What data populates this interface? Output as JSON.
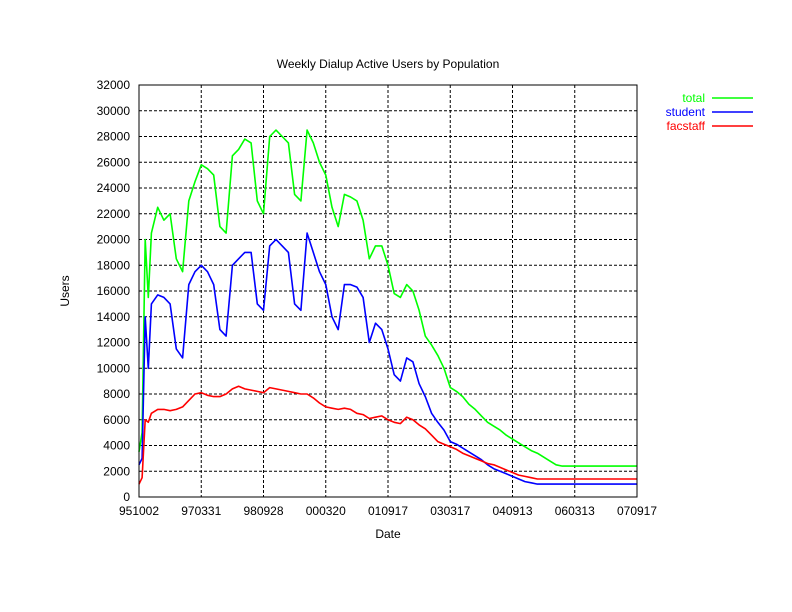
{
  "chart_data": {
    "type": "line",
    "title": "Weekly Dialup Active Users by Population",
    "xlabel": "Date",
    "ylabel": "Users",
    "ylim": [
      0,
      32000
    ],
    "yticks": [
      0,
      2000,
      4000,
      6000,
      8000,
      10000,
      12000,
      14000,
      16000,
      18000,
      20000,
      22000,
      24000,
      26000,
      28000,
      30000,
      32000
    ],
    "xticks": [
      "951002",
      "970331",
      "980928",
      "000320",
      "010917",
      "030317",
      "040913",
      "060313",
      "070917"
    ],
    "grid": true,
    "legend_position": "top-right outside",
    "x": [
      0,
      0.05,
      0.1,
      0.15,
      0.2,
      0.3,
      0.4,
      0.5,
      0.6,
      0.7,
      0.8,
      0.9,
      1.0,
      1.1,
      1.2,
      1.3,
      1.4,
      1.5,
      1.6,
      1.7,
      1.8,
      1.9,
      2.0,
      2.1,
      2.2,
      2.3,
      2.4,
      2.5,
      2.6,
      2.7,
      2.8,
      2.9,
      3.0,
      3.1,
      3.2,
      3.3,
      3.4,
      3.5,
      3.6,
      3.7,
      3.8,
      3.9,
      4.0,
      4.1,
      4.2,
      4.3,
      4.4,
      4.5,
      4.6,
      4.7,
      4.8,
      4.9,
      5.0,
      5.1,
      5.2,
      5.3,
      5.4,
      5.5,
      5.6,
      5.7,
      5.8,
      5.9,
      6.0,
      6.1,
      6.2,
      6.3,
      6.4,
      6.5,
      6.6,
      6.7,
      6.8,
      6.9,
      7.0,
      7.1,
      7.2,
      7.3,
      7.4,
      7.5,
      7.6,
      7.7,
      7.8,
      7.9,
      8.0
    ],
    "series": [
      {
        "name": "total",
        "color": "#00ff00",
        "values": [
          3500,
          5000,
          20000,
          15500,
          20500,
          22500,
          21500,
          22000,
          18500,
          17500,
          23000,
          24500,
          25800,
          25500,
          25000,
          21000,
          20500,
          26500,
          27000,
          27800,
          27500,
          23000,
          22000,
          28000,
          28500,
          28000,
          27500,
          23500,
          23000,
          28500,
          27500,
          26000,
          25000,
          22500,
          21000,
          23500,
          23300,
          23000,
          21500,
          18500,
          19500,
          19500,
          18000,
          15800,
          15500,
          16500,
          16000,
          14500,
          12500,
          11800,
          11000,
          10000,
          8500,
          8200,
          7800,
          7200,
          6800,
          6300,
          5800,
          5500,
          5200,
          4800,
          4500,
          4200,
          3900,
          3600,
          3400,
          3100,
          2800,
          2500,
          2400,
          2400,
          2400,
          2400,
          2400,
          2400,
          2400,
          2400,
          2400,
          2400,
          2400,
          2400,
          2400
        ]
      },
      {
        "name": "student",
        "color": "#0000ff",
        "values": [
          2500,
          3000,
          14000,
          10000,
          15000,
          15700,
          15500,
          15000,
          11500,
          10800,
          16500,
          17500,
          18000,
          17500,
          16500,
          13000,
          12500,
          18000,
          18500,
          19000,
          19000,
          15000,
          14500,
          19500,
          20000,
          19500,
          19000,
          15000,
          14500,
          20500,
          19000,
          17500,
          16500,
          14000,
          13000,
          16500,
          16500,
          16300,
          15500,
          12000,
          13500,
          13000,
          11500,
          9500,
          9000,
          10800,
          10500,
          8800,
          7800,
          6500,
          5800,
          5200,
          4300,
          4100,
          3800,
          3500,
          3200,
          2900,
          2500,
          2200,
          2000,
          1800,
          1600,
          1400,
          1200,
          1100,
          1000,
          1000,
          1000,
          1000,
          1000,
          1000,
          1000,
          1000,
          1000,
          1000,
          1000,
          1000,
          1000,
          1000,
          1000,
          1000,
          1000
        ]
      },
      {
        "name": "facstaff",
        "color": "#ff0000",
        "values": [
          1000,
          1500,
          6000,
          5800,
          6500,
          6800,
          6800,
          6700,
          6800,
          7000,
          7500,
          8000,
          8100,
          7900,
          7800,
          7800,
          8000,
          8400,
          8600,
          8400,
          8300,
          8200,
          8100,
          8500,
          8400,
          8300,
          8200,
          8100,
          8000,
          8000,
          7700,
          7300,
          7000,
          6900,
          6800,
          6900,
          6800,
          6500,
          6400,
          6100,
          6200,
          6300,
          6000,
          5800,
          5700,
          6200,
          6000,
          5600,
          5300,
          4800,
          4300,
          4100,
          3900,
          3700,
          3400,
          3200,
          3000,
          2800,
          2600,
          2500,
          2300,
          2100,
          1900,
          1700,
          1600,
          1500,
          1400,
          1400,
          1400,
          1400,
          1400,
          1400,
          1400,
          1400,
          1400,
          1400,
          1400,
          1400,
          1400,
          1400,
          1400,
          1400,
          1400
        ]
      }
    ]
  }
}
